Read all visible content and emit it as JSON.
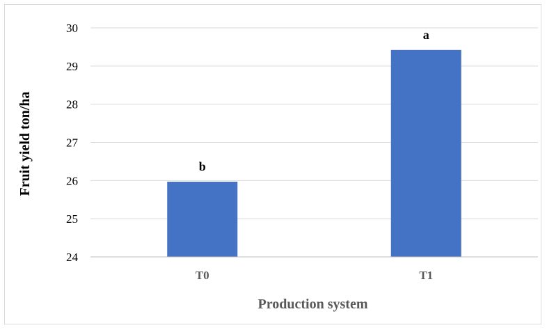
{
  "chart_data": {
    "type": "bar",
    "categories": [
      "T0",
      "T1"
    ],
    "values": [
      25.97,
      29.42
    ],
    "data_labels": [
      "b",
      "a"
    ],
    "title": "",
    "xlabel": "Production system",
    "ylabel": "Fruit yield ton/ha",
    "ylim": [
      24,
      30
    ],
    "yticks": [
      "24",
      "25",
      "26",
      "27",
      "28",
      "29",
      "30"
    ],
    "grid": true,
    "legend": "none",
    "colors": {
      "bar": "#4472c4",
      "grid": "#d9d9d9",
      "axis": "#bfbfbf",
      "xlabel": "#595959",
      "ylabel": "#000000"
    }
  }
}
